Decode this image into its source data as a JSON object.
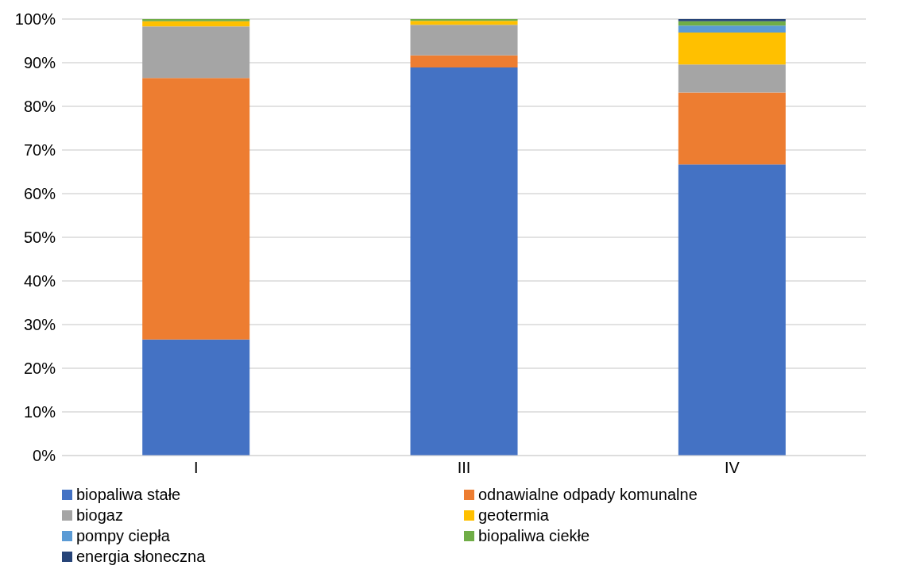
{
  "chart_data": {
    "type": "bar",
    "stacked": true,
    "categories": [
      "I",
      "III",
      "IV"
    ],
    "series": [
      {
        "name": "biopaliwa stałe",
        "color": "#4472c4",
        "values": [
          26.6,
          88.9,
          66.7
        ]
      },
      {
        "name": "odnawialne odpady komunalne",
        "color": "#ed7d31",
        "values": [
          59.9,
          2.8,
          16.5
        ]
      },
      {
        "name": "biogaz",
        "color": "#a5a5a5",
        "values": [
          11.8,
          7.0,
          6.4
        ]
      },
      {
        "name": "geotermia",
        "color": "#ffc000",
        "values": [
          1.2,
          0.9,
          7.3
        ]
      },
      {
        "name": "pompy ciepła",
        "color": "#5b9bd5",
        "values": [
          0,
          0,
          1.6
        ]
      },
      {
        "name": "biopaliwa ciekłe",
        "color": "#70ad47",
        "values": [
          0.5,
          0.4,
          1.0
        ]
      },
      {
        "name": "energia słoneczna",
        "color": "#264478",
        "values": [
          0,
          0,
          0.5
        ]
      }
    ],
    "ylim": [
      0,
      100
    ],
    "yticks": [
      {
        "value": 0,
        "label": "0%"
      },
      {
        "value": 10,
        "label": "10%"
      },
      {
        "value": 20,
        "label": "20%"
      },
      {
        "value": 30,
        "label": "30%"
      },
      {
        "value": 40,
        "label": "40%"
      },
      {
        "value": 50,
        "label": "50%"
      },
      {
        "value": 60,
        "label": "60%"
      },
      {
        "value": 70,
        "label": "70%"
      },
      {
        "value": 80,
        "label": "80%"
      },
      {
        "value": 90,
        "label": "90%"
      },
      {
        "value": 100,
        "label": "100%"
      }
    ],
    "grid": "y",
    "legend": "bottom"
  }
}
